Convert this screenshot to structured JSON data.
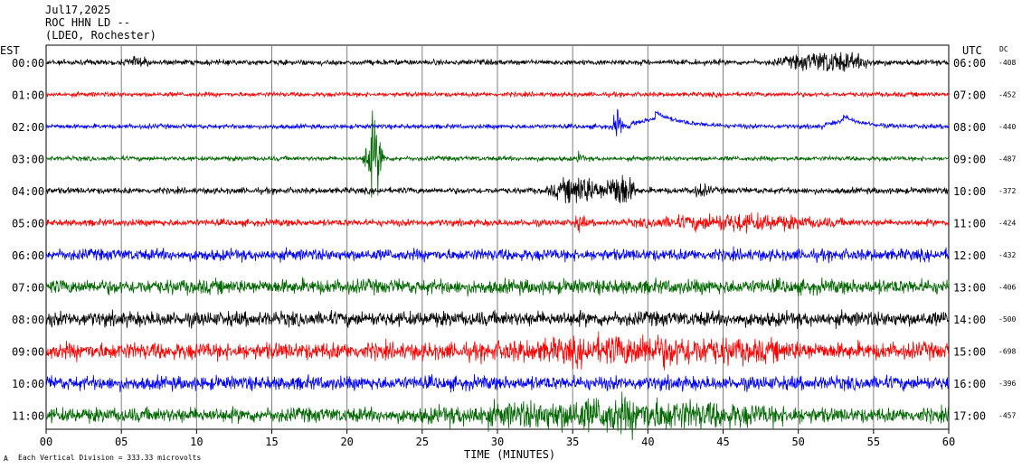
{
  "header": {
    "date": "Jul17,2025",
    "station": "ROC HHN LD --",
    "network": "(LDEO, Rochester)"
  },
  "left_zone": "EST",
  "right_zone": "UTC",
  "dc_header": "DC",
  "footer": {
    "scale_note": "Each Vertical Division =  333.33 microvolts",
    "corner_mark": "A"
  },
  "colors": {
    "trace_cycle": [
      "#000000",
      "#ff0000",
      "#0000ff",
      "#006600"
    ],
    "grid": "#808080"
  },
  "chart_data": {
    "type": "line",
    "title": "",
    "xlabel": "TIME (MINUTES)",
    "ylabel": "",
    "xlim": [
      0,
      60
    ],
    "x_ticks": [
      "00",
      "05",
      "10",
      "15",
      "20",
      "25",
      "30",
      "35",
      "40",
      "45",
      "50",
      "55",
      "60"
    ],
    "grid": true,
    "rows": [
      {
        "est": "00:00",
        "utc": "06:00",
        "dc": "-408",
        "color": "#000000",
        "noise": 0.35,
        "events": [
          {
            "t": 6,
            "dur": 1.0,
            "amp": 0.5
          },
          {
            "t": 52,
            "dur": 4.0,
            "amp": 1.3
          }
        ]
      },
      {
        "est": "01:00",
        "utc": "07:00",
        "dc": "-452",
        "color": "#ff0000",
        "noise": 0.3,
        "events": []
      },
      {
        "est": "02:00",
        "utc": "08:00",
        "dc": "-440",
        "color": "#0000ff",
        "noise": 0.3,
        "events": [
          {
            "t": 38,
            "dur": 0.4,
            "amp": 2.5
          }
        ],
        "steps": [
          {
            "t": 40.5,
            "width": 1.6,
            "amp": -1.6
          },
          {
            "t": 53,
            "width": 1.2,
            "amp": -1.2
          }
        ]
      },
      {
        "est": "03:00",
        "utc": "09:00",
        "dc": "-487",
        "color": "#006600",
        "noise": 0.3,
        "events": [
          {
            "t": 21.8,
            "dur": 0.8,
            "amp": 5.5
          },
          {
            "t": 35.5,
            "dur": 0.3,
            "amp": 0.8
          }
        ]
      },
      {
        "est": "04:00",
        "utc": "10:00",
        "dc": "-372",
        "color": "#000000",
        "noise": 0.4,
        "events": [
          {
            "t": 35.5,
            "dur": 2.5,
            "amp": 1.8
          },
          {
            "t": 38.2,
            "dur": 1.2,
            "amp": 2.6
          },
          {
            "t": 43.5,
            "dur": 1.0,
            "amp": 0.6
          }
        ]
      },
      {
        "est": "05:00",
        "utc": "11:00",
        "dc": "-424",
        "color": "#ff0000",
        "noise": 0.45,
        "events": [
          {
            "t": 35.5,
            "dur": 0.5,
            "amp": 0.9
          },
          {
            "t": 46,
            "dur": 8,
            "amp": 0.9
          }
        ]
      },
      {
        "est": "06:00",
        "utc": "12:00",
        "dc": "-432",
        "color": "#0000ff",
        "noise": 0.75,
        "events": []
      },
      {
        "est": "07:00",
        "utc": "13:00",
        "dc": "-406",
        "color": "#006600",
        "noise": 0.95,
        "events": []
      },
      {
        "est": "08:00",
        "utc": "14:00",
        "dc": "-500",
        "color": "#000000",
        "noise": 0.95,
        "events": []
      },
      {
        "est": "09:00",
        "utc": "15:00",
        "dc": "-698",
        "color": "#ff0000",
        "noise": 1.1,
        "events": [
          {
            "t": 40,
            "dur": 12,
            "amp": 1.2
          }
        ]
      },
      {
        "est": "10:00",
        "utc": "16:00",
        "dc": "-396",
        "color": "#0000ff",
        "noise": 0.9,
        "events": []
      },
      {
        "est": "11:00",
        "utc": "17:00",
        "dc": "-457",
        "color": "#006600",
        "noise": 0.95,
        "events": [
          {
            "t": 38,
            "dur": 14,
            "amp": 1.6
          }
        ]
      }
    ]
  }
}
